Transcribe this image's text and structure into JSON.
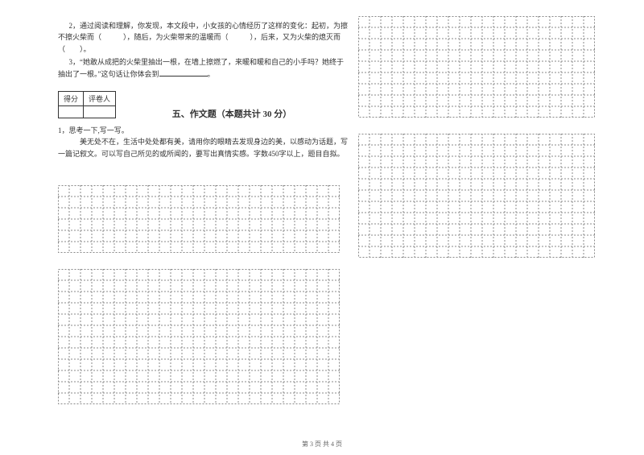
{
  "q2_text": "2，通过阅读和理解，你发现，本文段中，小女孩的心情经历了这样的变化：起初，为擦不擦火柴而（　　　），随后，为火柴带来的温暖而（　　　），后来，又为火柴的熄灭而（　　）。",
  "q3_text": "3，“她敢从成把的火柴里抽出一根，在墙上擦燃了，来暖和暖和自己的小手吗？她终于抽出了一根。”这句话让你体会到",
  "score_label_1": "得分",
  "score_label_2": "评卷人",
  "section_title": "五、作文题（本题共计 30 分）",
  "essay_q": "1，思考一下,写一写。",
  "essay_prompt": "美无处不在，生活中处处都有美，请用你的眼睛去发现身边的美，以感动为话题，写一篇记叙文。可以写自己所见的或所闻的，要写出真情实感。字数450字以上，题目自拟。",
  "footer": "第 3 页  共 4 页",
  "grid": {
    "cell_size": 14,
    "border_color": "#888888",
    "dash": "2,2"
  }
}
